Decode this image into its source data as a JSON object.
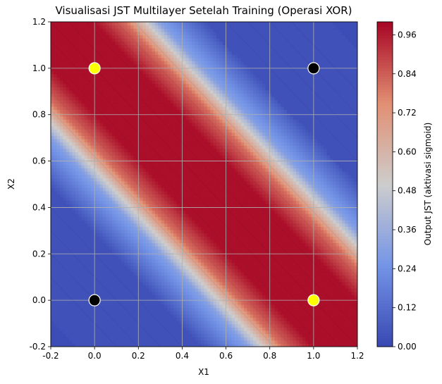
{
  "chart_data": {
    "type": "heatmap",
    "subtype": "filled-contour",
    "title": "Visualisasi JST Multilayer Setelah Training (Operasi XOR)",
    "xlabel": "X1",
    "ylabel": "X2",
    "xlim": [
      -0.2,
      1.2
    ],
    "ylim": [
      -0.2,
      1.2
    ],
    "xticks": [
      "-0.2",
      "0.0",
      "0.2",
      "0.4",
      "0.6",
      "0.8",
      "1.0",
      "1.2"
    ],
    "yticks": [
      "-0.2",
      "0.0",
      "0.2",
      "0.4",
      "0.6",
      "0.8",
      "1.0",
      "1.2"
    ],
    "grid": true,
    "colormap": "coolwarm",
    "colorbar": {
      "label": "Output JST (aktivasi sigmoid)",
      "range": [
        0.0,
        1.0
      ],
      "ticks": [
        "0.00",
        "0.12",
        "0.24",
        "0.36",
        "0.48",
        "0.60",
        "0.72",
        "0.84",
        "0.96"
      ]
    },
    "points": [
      {
        "x": 0,
        "y": 0,
        "target": 0,
        "color": "#000000"
      },
      {
        "x": 0,
        "y": 1,
        "target": 1,
        "color": "#ffff00"
      },
      {
        "x": 1,
        "y": 0,
        "target": 1,
        "color": "#ffff00"
      },
      {
        "x": 1,
        "y": 1,
        "target": 0,
        "color": "#000000"
      }
    ],
    "surface_profile": {
      "description_axis": "output vs x1 + x2",
      "s": [
        -0.4,
        0.3,
        0.5,
        0.66,
        0.8,
        1.0,
        1.2,
        1.34,
        1.5,
        1.7,
        2.4
      ],
      "out": [
        0.03,
        0.05,
        0.3,
        0.8,
        0.97,
        0.98,
        0.97,
        0.8,
        0.3,
        0.05,
        0.03
      ]
    }
  }
}
